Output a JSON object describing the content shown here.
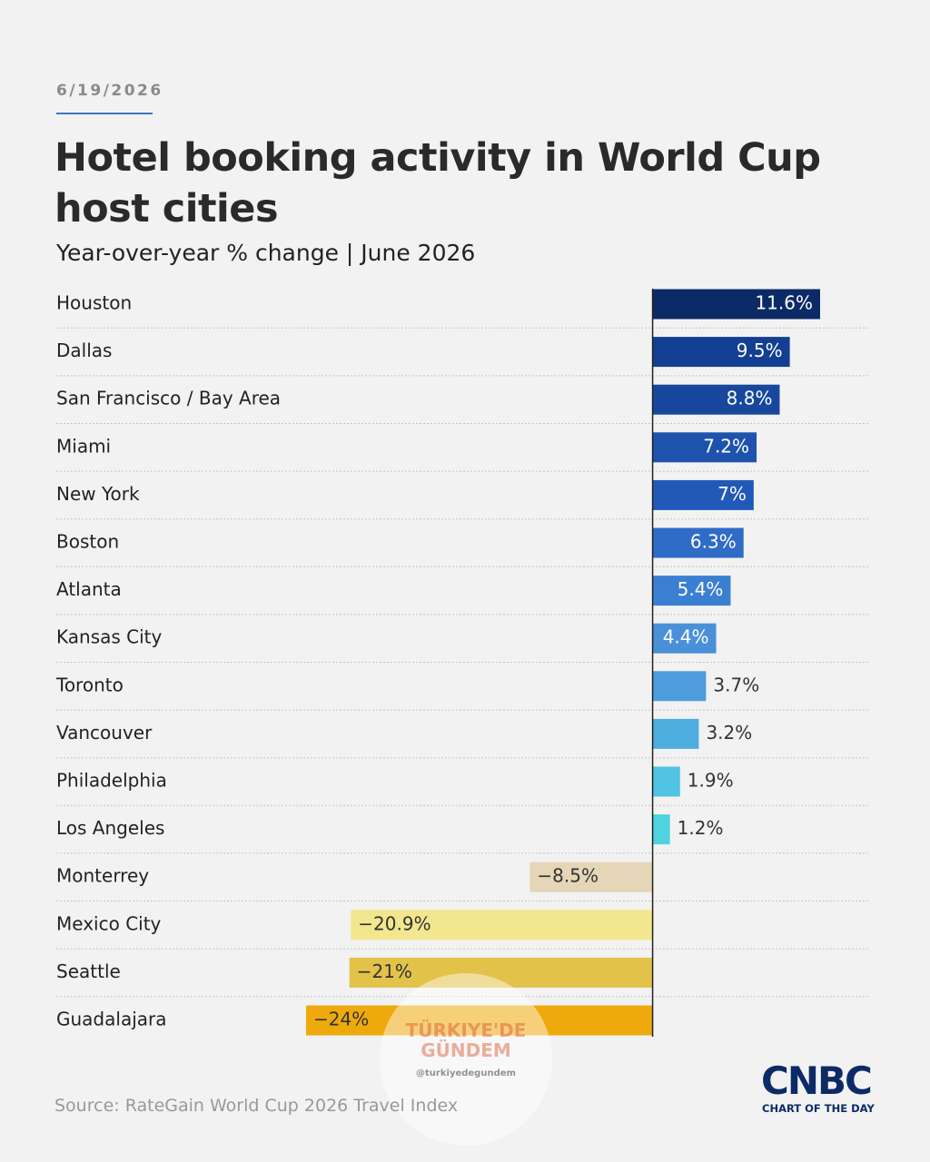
{
  "chart_data": {
    "type": "bar",
    "orientation": "horizontal",
    "date": "6/19/2026",
    "title": "Hotel booking activity in World Cup host cities",
    "subtitle": "Year-over-year % change | June 2026",
    "source": "Source: RateGain World Cup 2026 Travel Index",
    "logo": "CNBC",
    "logo_tagline": "CHART OF THE DAY",
    "watermark": [
      "TÜRKIYE'DE",
      "GÜNDEM",
      "@turkiyedegundem"
    ],
    "categories": [
      "Houston",
      "Dallas",
      "San Francisco / Bay Area",
      "Miami",
      "New York",
      "Boston",
      "Atlanta",
      "Kansas City",
      "Toronto",
      "Vancouver",
      "Philadelphia",
      "Los Angeles",
      "Monterrey",
      "Mexico City",
      "Seattle",
      "Guadalajara"
    ],
    "values": [
      11.6,
      9.5,
      8.8,
      7.2,
      7,
      6.3,
      5.4,
      4.4,
      3.7,
      3.2,
      1.9,
      1.2,
      -8.5,
      -20.9,
      -21,
      -24
    ],
    "value_labels": [
      "11.6%",
      "9.5%",
      "8.8%",
      "7.2%",
      "7%",
      "6.3%",
      "5.4%",
      "4.4%",
      "3.7%",
      "3.2%",
      "1.9%",
      "1.2%",
      "−8.5%",
      "−20.9%",
      "−21%",
      "−24%"
    ],
    "colors": [
      "#0c2b66",
      "#133f92",
      "#17489e",
      "#1d52ad",
      "#2259b8",
      "#2f6cc7",
      "#3a7fd2",
      "#4a90d9",
      "#4f9ddd",
      "#4eaddf",
      "#51c3e3",
      "#4fd3e0",
      "#e4d6b7",
      "#f2e68e",
      "#e3c24a",
      "#eeaa0c"
    ],
    "xlim": [
      -24,
      11.6
    ]
  }
}
